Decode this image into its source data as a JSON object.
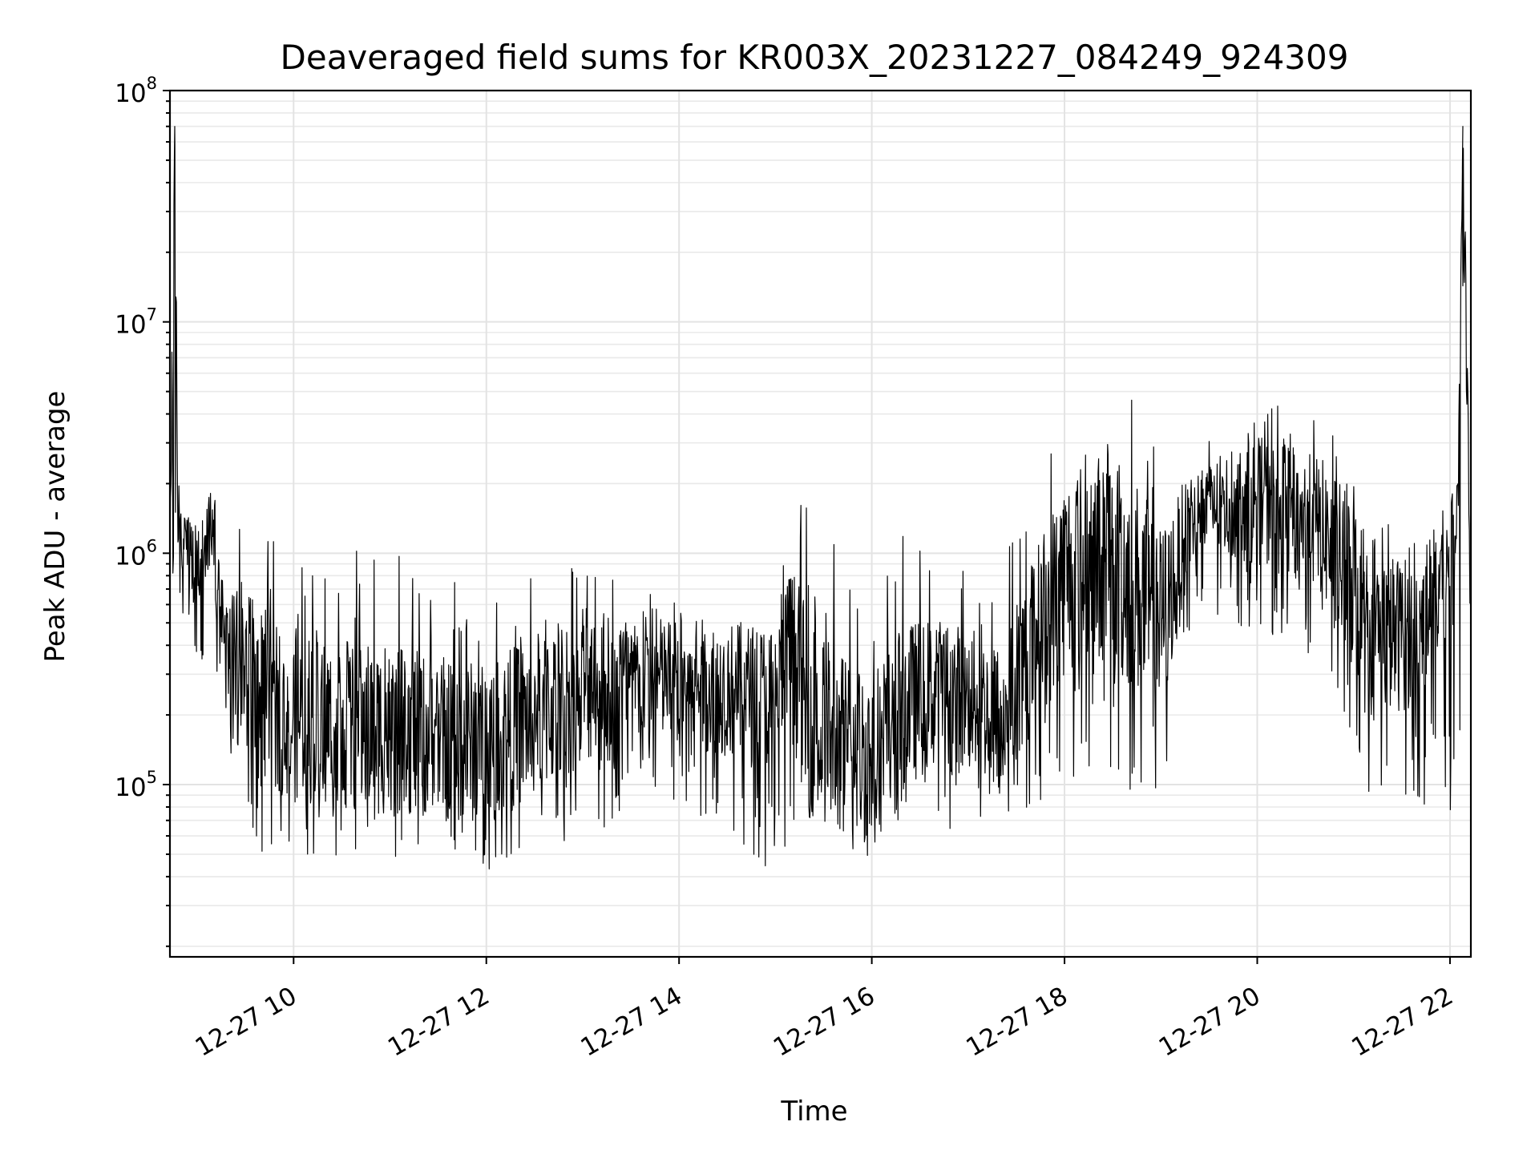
{
  "chart_data": {
    "type": "line",
    "title": "Deaveraged field sums for KR003X_20231227_084249_924309",
    "xlabel": "Time",
    "ylabel": "Peak ADU - average",
    "yscale": "log",
    "grid": "on",
    "line_color": "#000000",
    "xlim": [
      "2023-12-27 08:43",
      "2023-12-27 22:13"
    ],
    "ylim": [
      18000,
      100000000
    ],
    "xticks": [
      {
        "label": "12-27 10",
        "value": "2023-12-27 10:00"
      },
      {
        "label": "12-27 12",
        "value": "2023-12-27 12:00"
      },
      {
        "label": "12-27 14",
        "value": "2023-12-27 14:00"
      },
      {
        "label": "12-27 16",
        "value": "2023-12-27 16:00"
      },
      {
        "label": "12-27 18",
        "value": "2023-12-27 18:00"
      },
      {
        "label": "12-27 20",
        "value": "2023-12-27 20:00"
      },
      {
        "label": "12-27 22",
        "value": "2023-12-27 22:00"
      }
    ],
    "yticks": [
      {
        "base": "10",
        "exp": "5",
        "value": 100000
      },
      {
        "base": "10",
        "exp": "6",
        "value": 1000000
      },
      {
        "base": "10",
        "exp": "7",
        "value": 10000000
      },
      {
        "base": "10",
        "exp": "8",
        "value": 100000000
      }
    ],
    "series": [
      {
        "x": [
          "2023-12-27 08:43",
          "2023-12-27 08:46",
          "2023-12-27 08:48",
          "2023-12-27 08:50",
          "2023-12-27 08:52",
          "2023-12-27 08:55",
          "2023-12-27 09:00",
          "2023-12-27 09:05",
          "2023-12-27 09:10",
          "2023-12-27 09:15",
          "2023-12-27 09:20",
          "2023-12-27 09:25",
          "2023-12-27 09:30",
          "2023-12-27 09:40",
          "2023-12-27 09:50",
          "2023-12-27 10:00",
          "2023-12-27 10:30",
          "2023-12-27 11:00",
          "2023-12-27 11:30",
          "2023-12-27 12:00",
          "2023-12-27 12:30",
          "2023-12-27 13:00",
          "2023-12-27 13:30",
          "2023-12-27 14:00",
          "2023-12-27 14:30",
          "2023-12-27 15:00",
          "2023-12-27 15:10",
          "2023-12-27 15:20",
          "2023-12-27 15:40",
          "2023-12-27 16:00",
          "2023-12-27 16:20",
          "2023-12-27 16:40",
          "2023-12-27 17:00",
          "2023-12-27 17:20",
          "2023-12-27 17:40",
          "2023-12-27 18:00",
          "2023-12-27 18:20",
          "2023-12-27 18:40",
          "2023-12-27 19:00",
          "2023-12-27 19:20",
          "2023-12-27 19:40",
          "2023-12-27 20:00",
          "2023-12-27 20:20",
          "2023-12-27 20:40",
          "2023-12-27 21:00",
          "2023-12-27 21:20",
          "2023-12-27 21:40",
          "2023-12-27 21:55",
          "2023-12-27 22:05",
          "2023-12-27 22:08",
          "2023-12-27 22:13"
        ],
        "y": [
          900000,
          60000000,
          1500000,
          1200000,
          1000000,
          1000000,
          800000,
          1100000,
          1200000,
          500000,
          300000,
          400000,
          300000,
          250000,
          220000,
          200000,
          180000,
          170000,
          160000,
          150000,
          200000,
          260000,
          280000,
          280000,
          260000,
          230000,
          400000,
          200000,
          150000,
          130000,
          220000,
          250000,
          230000,
          200000,
          400000,
          800000,
          1000000,
          800000,
          500000,
          1500000,
          1600000,
          1700000,
          1500000,
          1300000,
          700000,
          450000,
          450000,
          800000,
          1200000,
          65000000,
          1000000
        ],
        "min": [
          700000,
          600000,
          600000,
          500000,
          500000,
          400000,
          350000,
          300000,
          300000,
          250000,
          120000,
          80000,
          60000,
          50000,
          48000,
          50000,
          48000,
          46000,
          46000,
          42000,
          45000,
          60000,
          70000,
          70000,
          60000,
          40000,
          60000,
          55000,
          50000,
          48000,
          60000,
          65000,
          60000,
          70000,
          80000,
          100000,
          100000,
          90000,
          80000,
          500000,
          500000,
          450000,
          400000,
          350000,
          100000,
          80000,
          80000,
          80000,
          70000,
          200000,
          700000
        ],
        "max": [
          1500000,
          70000000,
          2500000,
          2000000,
          1800000,
          1500000,
          1400000,
          2000000,
          2200000,
          1400000,
          1200000,
          1300000,
          1300000,
          1200000,
          1100000,
          1200000,
          1100000,
          1000000,
          900000,
          800000,
          900000,
          1000000,
          800000,
          700000,
          700000,
          650000,
          1400000,
          2200000,
          1400000,
          1300000,
          1200000,
          1000000,
          900000,
          900000,
          2000000,
          4000000,
          4500000,
          5500000,
          2500000,
          3000000,
          3300000,
          4500000,
          4500000,
          4300000,
          2500000,
          1500000,
          1200000,
          1500000,
          2000000,
          70000000,
          2500000
        ]
      }
    ]
  }
}
